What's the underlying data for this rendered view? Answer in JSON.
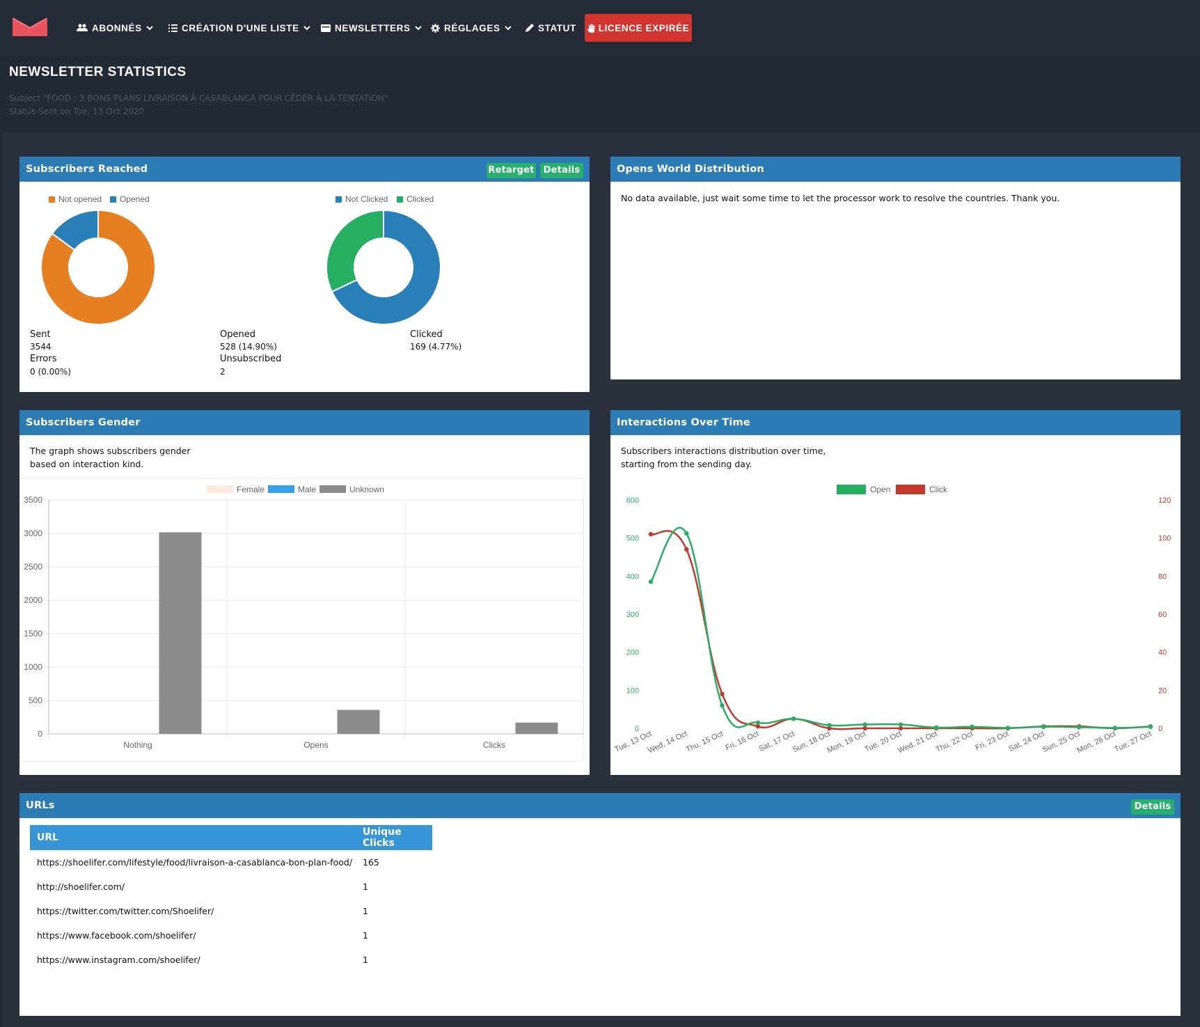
{
  "nav": {
    "items": [
      {
        "label": "ABONNÉS",
        "icon": "users-icon",
        "dropdown": true
      },
      {
        "label": "CRÉATION D'UNE LISTE",
        "icon": "list-icon",
        "dropdown": true
      },
      {
        "label": "NEWSLETTERS",
        "icon": "envelope-card-icon",
        "dropdown": true
      },
      {
        "label": "RÉGLAGES",
        "icon": "gear-icon",
        "dropdown": true
      },
      {
        "label": "STATUT",
        "icon": "pen-icon",
        "dropdown": false
      }
    ],
    "licence_label": "LICENCE EXPIRÉE",
    "licence_color": "#d0352f"
  },
  "page": {
    "title": "NEWSLETTER STATISTICS",
    "subject_line": "Subject \"FOOD : 3 BONS PLANS LIVRAISON À CASABLANCA POUR CÉDER À LA TENTATION\"",
    "status_line": "Status Sent on Tue, 13 Oct 2020"
  },
  "colors": {
    "header_blue": "#2b7cb5",
    "green": "#26b06b",
    "orange": "#e67e22",
    "blue": "#2980b9",
    "red": "#c0392b",
    "gray": "#8c8c8c"
  },
  "reached": {
    "title": "Subscribers Reached",
    "retarget_label": "Retarget",
    "details_label": "Details",
    "sent_label": "Sent",
    "sent_value": "3544",
    "errors_label": "Errors",
    "errors_value": "0 (0.00%)",
    "opened_label": "Opened",
    "opened_value": "528 (14.90%)",
    "unsub_label": "Unsubscribed",
    "unsub_value": "2",
    "clicked_label": "Clicked",
    "clicked_value": "169 (4.77%)"
  },
  "world": {
    "title": "Opens World Distribution",
    "message": "No data available, just wait some time to let the processor work to resolve the countries. Thank you."
  },
  "gender": {
    "title": "Subscribers Gender",
    "description_line1": "The graph shows subscribers gender",
    "description_line2": "based on interaction kind."
  },
  "interactions": {
    "title": "Interactions Over Time",
    "description_line1": "Subscribers interactions distribution over time,",
    "description_line2": "starting from the sending day."
  },
  "urls": {
    "title": "URLs",
    "details_label": "Details",
    "col_url": "URL",
    "col_clicks": "Unique Clicks",
    "rows": [
      {
        "url": "https://shoelifer.com/lifestyle/food/livraison-a-casablanca-bon-plan-food/",
        "clicks": "165"
      },
      {
        "url": "http://shoelifer.com/",
        "clicks": "1"
      },
      {
        "url": "https://twitter.com/twitter.com/Shoelifer/",
        "clicks": "1"
      },
      {
        "url": "https://www.facebook.com/shoelifer/",
        "clicks": "1"
      },
      {
        "url": "https://www.instagram.com/shoelifer/",
        "clicks": "1"
      }
    ]
  },
  "chart_data": [
    {
      "type": "pie",
      "donut": true,
      "labels": [
        "Not opened",
        "Opened"
      ],
      "values": [
        3016,
        528
      ],
      "colors": [
        "#e67e22",
        "#2980b9"
      ],
      "legend_position": "top"
    },
    {
      "type": "pie",
      "donut": true,
      "labels": [
        "Not Clicked",
        "Clicked"
      ],
      "values": [
        359,
        169
      ],
      "colors": [
        "#2980b9",
        "#27ae60"
      ],
      "legend_position": "top"
    },
    {
      "type": "bar",
      "categories": [
        "Nothing",
        "Opens",
        "Clicks"
      ],
      "series": [
        {
          "name": "Female",
          "values": [
            0,
            0,
            0
          ],
          "color": "#fde9dd"
        },
        {
          "name": "Male",
          "values": [
            0,
            0,
            0
          ],
          "color": "#36a2eb"
        },
        {
          "name": "Unknown",
          "values": [
            3016,
            359,
            169
          ],
          "color": "#8c8c8c"
        }
      ],
      "ylim": [
        0,
        3500
      ],
      "yticks": [
        "0",
        "500",
        "1000",
        "1500",
        "2000",
        "2500",
        "3000",
        "3500"
      ],
      "grid": true,
      "legend_position": "top"
    },
    {
      "type": "line",
      "x": [
        "Tue, 13 Oct",
        "Wed, 14 Oct",
        "Thu, 15 Oct",
        "Fri, 16 Oct",
        "Sat, 17 Oct",
        "Sun, 18 Oct",
        "Mon, 19 Oct",
        "Tue, 20 Oct",
        "Wed, 21 Oct",
        "Thu, 22 Oct",
        "Fri, 23 Oct",
        "Sat, 24 Oct",
        "Sun, 25 Oct",
        "Mon, 26 Oct",
        "Tue, 27 Oct"
      ],
      "series": [
        {
          "name": "Open",
          "axis": "left",
          "color": "#27ae60",
          "values": [
            385,
            512,
            60,
            15,
            25,
            8,
            10,
            10,
            2,
            4,
            1,
            4,
            3,
            1,
            4
          ]
        },
        {
          "name": "Click",
          "axis": "right",
          "color": "#c0392b",
          "values": [
            102,
            94,
            18,
            1,
            5,
            0,
            0,
            0,
            0,
            0,
            0,
            1,
            1,
            0,
            1
          ]
        }
      ],
      "ylim_left": [
        0,
        600
      ],
      "yticks_left": [
        "0",
        "100",
        "200",
        "300",
        "400",
        "500",
        "600"
      ],
      "ylim_right": [
        0,
        120
      ],
      "yticks_right": [
        "0",
        "20",
        "40",
        "60",
        "80",
        "100",
        "120"
      ],
      "legend_position": "top"
    }
  ]
}
